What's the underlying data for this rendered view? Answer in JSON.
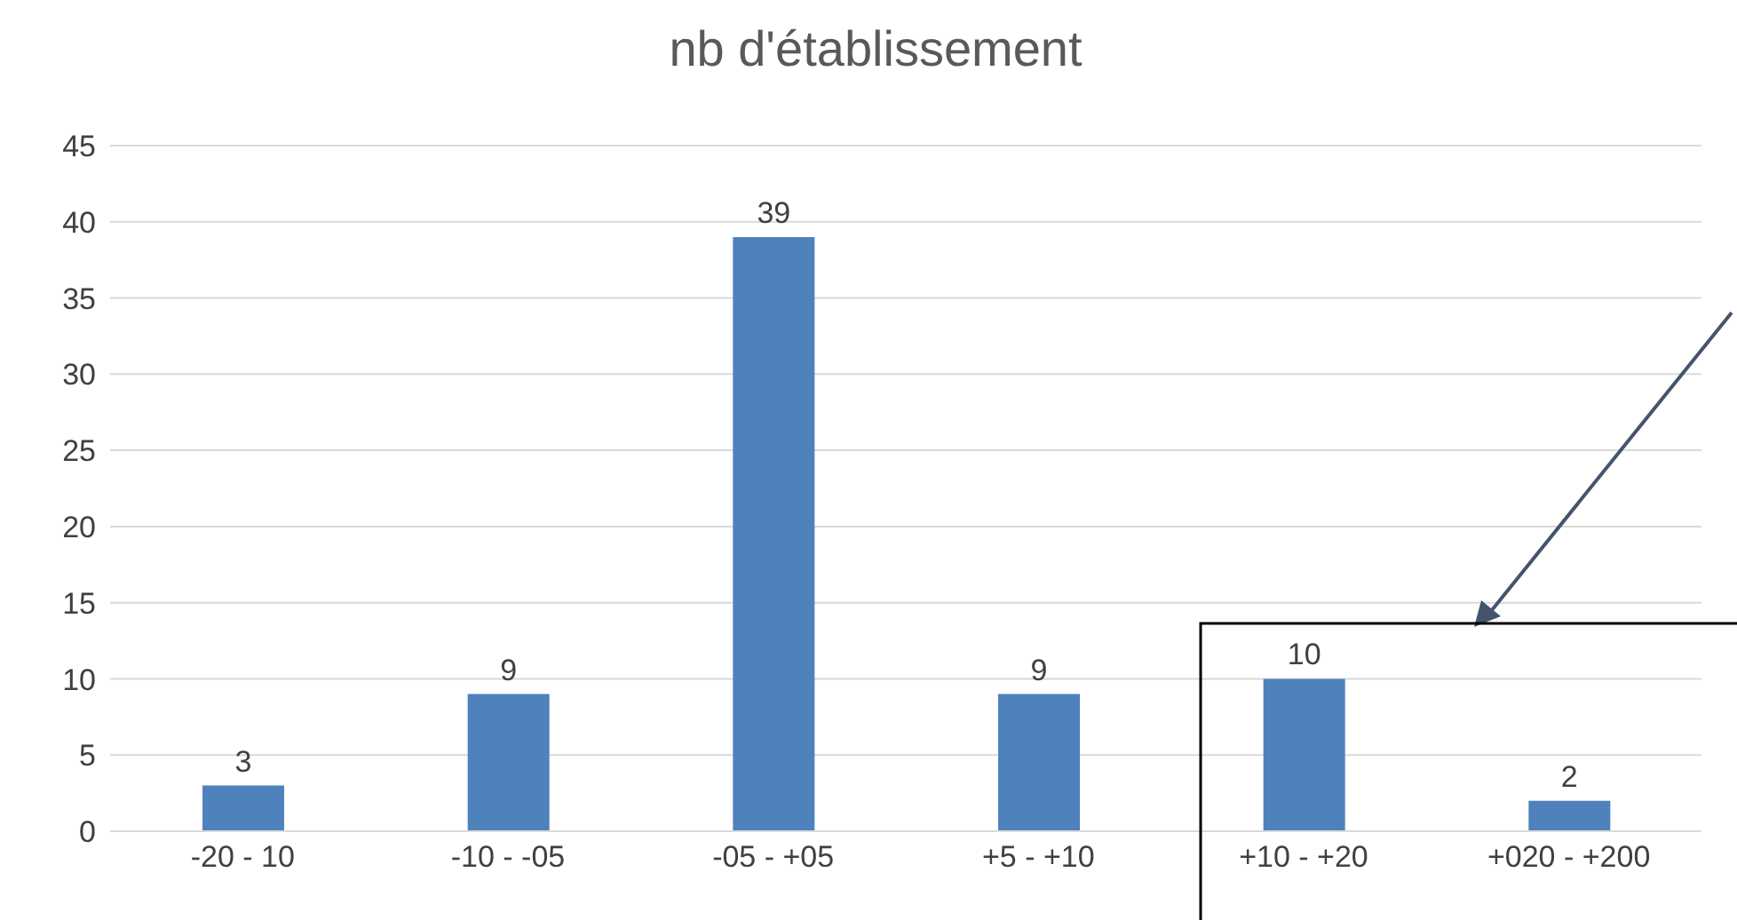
{
  "chart_data": {
    "type": "bar",
    "title": "nb d'établissement",
    "categories": [
      "-20 - 10",
      "-10 - -05",
      "-05 - +05",
      "+5 - +10",
      "+10 - +20",
      "+020 - +200"
    ],
    "values": [
      3,
      9,
      39,
      9,
      10,
      2
    ],
    "color": "#4f81bd",
    "ylim": [
      0,
      45
    ],
    "yticks": [
      0,
      5,
      10,
      15,
      20,
      25,
      30,
      35,
      40,
      45
    ],
    "grid": "y",
    "data_labels": true
  }
}
